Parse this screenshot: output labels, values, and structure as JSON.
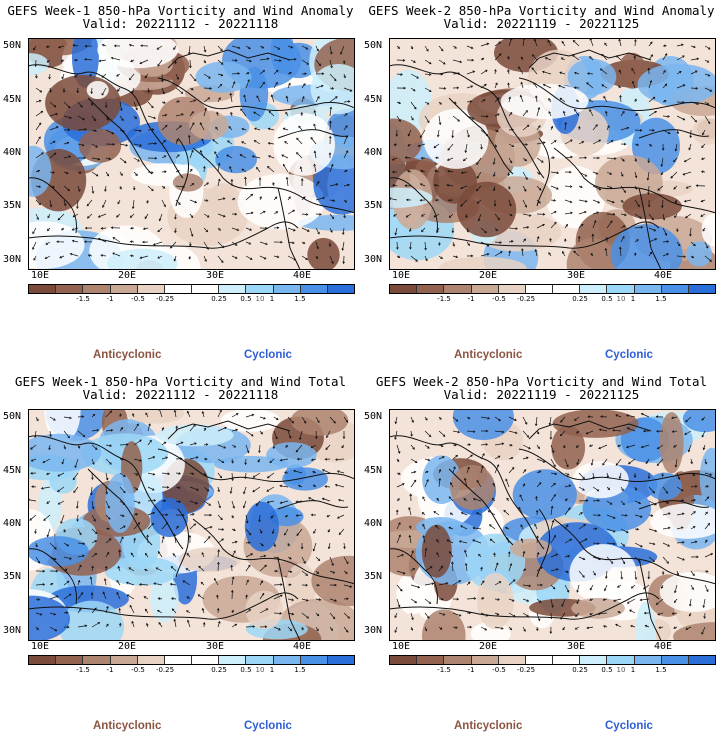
{
  "panels": [
    {
      "title_line1": "GEFS Week-1 850-hPa Vorticity and Wind Anomaly",
      "title_line2": "Valid: 20221112 - 20221118",
      "seed": 11
    },
    {
      "title_line1": "GEFS Week-2 850-hPa Vorticity and Wind Anomaly",
      "title_line2": "Valid: 20221119 - 20221125",
      "seed": 23
    },
    {
      "title_line1": "GEFS Week-1 850-hPa Vorticity and Wind Total",
      "title_line2": "Valid: 20221112 - 20221118",
      "seed": 37
    },
    {
      "title_line1": "GEFS Week-2 850-hPa Vorticity and Wind Total",
      "title_line2": "Valid: 20221119 - 20221125",
      "seed": 53
    }
  ],
  "axes": {
    "lat_labels": [
      "50N",
      "45N",
      "40N",
      "35N",
      "30N"
    ],
    "lon_labels": [
      "10E",
      "20E",
      "30E",
      "40E"
    ]
  },
  "colorbar": {
    "labels": [
      "-1.5",
      "-1",
      "-0.5",
      "-0.25",
      "0.25",
      "0.5",
      "1",
      "1.5"
    ],
    "exponent_label": "10",
    "colors": [
      "#7a4a3a",
      "#92624f",
      "#ad8470",
      "#c9a896",
      "#e7d2c4",
      "#ffffff",
      "#ffffff",
      "#cdeefb",
      "#9cd7f7",
      "#7ab6f0",
      "#4a90e6",
      "#2a6fd9"
    ]
  },
  "legend": {
    "anticyclonic": "Anticyclonic",
    "cyclonic": "Cyclonic"
  }
}
